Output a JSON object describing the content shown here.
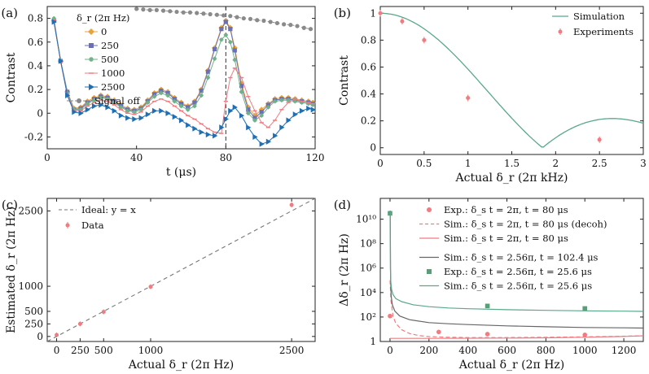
{
  "chart_data": [
    {
      "panel": "(a)",
      "type": "line",
      "xlabel": "t (μs)",
      "ylabel": "Contrast",
      "xlim": [
        0,
        120
      ],
      "ylim": [
        -0.3,
        0.9
      ],
      "xticks": [
        0,
        40,
        80,
        120
      ],
      "yticks": [
        -0.2,
        0,
        0.2,
        0.4,
        0.6,
        0.8
      ],
      "vline": 80,
      "legend_title": "δ_r (2π Hz)",
      "series": [
        {
          "name": "0",
          "color": "#e8a33d",
          "marker": "diamond",
          "x": [
            3,
            6,
            9,
            12,
            15,
            18,
            21,
            24,
            27,
            30,
            33,
            36,
            39,
            42,
            45,
            48,
            51,
            54,
            57,
            60,
            63,
            66,
            69,
            72,
            75,
            78,
            80,
            82,
            84,
            87,
            90,
            93,
            96,
            99,
            102,
            105,
            108,
            111,
            114,
            117,
            119
          ],
          "y": [
            0.78,
            0.44,
            0.18,
            0.04,
            0.05,
            0.1,
            0.13,
            0.15,
            0.14,
            0.11,
            0.07,
            0.04,
            0.03,
            0.05,
            0.11,
            0.17,
            0.2,
            0.18,
            0.13,
            0.09,
            0.06,
            0.1,
            0.2,
            0.36,
            0.55,
            0.72,
            0.78,
            0.72,
            0.55,
            0.25,
            0.05,
            -0.02,
            0.03,
            0.08,
            0.12,
            0.13,
            0.13,
            0.12,
            0.11,
            0.1,
            0.09
          ]
        },
        {
          "name": "250",
          "color": "#6b6fb8",
          "marker": "square",
          "x": [
            3,
            6,
            9,
            12,
            15,
            18,
            21,
            24,
            27,
            30,
            33,
            36,
            39,
            42,
            45,
            48,
            51,
            54,
            57,
            60,
            63,
            66,
            69,
            72,
            75,
            78,
            80,
            82,
            84,
            87,
            90,
            93,
            96,
            99,
            102,
            105,
            108,
            111,
            114,
            117,
            119
          ],
          "y": [
            0.78,
            0.44,
            0.18,
            0.03,
            0.04,
            0.09,
            0.12,
            0.14,
            0.13,
            0.1,
            0.06,
            0.03,
            0.02,
            0.04,
            0.1,
            0.16,
            0.19,
            0.17,
            0.12,
            0.08,
            0.05,
            0.09,
            0.19,
            0.35,
            0.54,
            0.71,
            0.77,
            0.71,
            0.53,
            0.23,
            0.03,
            -0.04,
            0.01,
            0.07,
            0.11,
            0.12,
            0.12,
            0.11,
            0.1,
            0.09,
            0.08
          ]
        },
        {
          "name": "500",
          "color": "#6fb289",
          "marker": "star",
          "x": [
            3,
            6,
            9,
            12,
            15,
            18,
            21,
            24,
            27,
            30,
            33,
            36,
            39,
            42,
            45,
            48,
            51,
            54,
            57,
            60,
            63,
            66,
            69,
            72,
            75,
            78,
            80,
            82,
            84,
            87,
            90,
            93,
            96,
            99,
            102,
            105,
            108,
            111,
            114,
            117,
            119
          ],
          "y": [
            0.8,
            0.44,
            0.17,
            0.03,
            0.03,
            0.08,
            0.11,
            0.13,
            0.12,
            0.09,
            0.05,
            0.02,
            0.01,
            0.03,
            0.09,
            0.14,
            0.17,
            0.15,
            0.1,
            0.06,
            0.03,
            0.06,
            0.15,
            0.3,
            0.46,
            0.62,
            0.66,
            0.6,
            0.45,
            0.18,
            0.0,
            -0.06,
            -0.02,
            0.05,
            0.1,
            0.11,
            0.11,
            0.1,
            0.09,
            0.08,
            0.07
          ]
        },
        {
          "name": "1000",
          "color": "#f07b80",
          "marker": "dash",
          "x": [
            3,
            6,
            9,
            12,
            15,
            18,
            21,
            24,
            27,
            30,
            33,
            36,
            39,
            42,
            45,
            48,
            51,
            54,
            57,
            60,
            63,
            66,
            69,
            72,
            75,
            78,
            80,
            82,
            84,
            87,
            90,
            93,
            96,
            99,
            102,
            105,
            108,
            111,
            114,
            117,
            119
          ],
          "y": [
            0.79,
            0.43,
            0.16,
            0.02,
            0.02,
            0.06,
            0.09,
            0.11,
            0.1,
            0.07,
            0.03,
            0.0,
            -0.01,
            0.01,
            0.06,
            0.1,
            0.12,
            0.1,
            0.06,
            0.02,
            -0.02,
            -0.05,
            -0.09,
            -0.13,
            -0.16,
            -0.17,
            0.1,
            0.3,
            0.38,
            0.3,
            0.14,
            0.02,
            -0.08,
            -0.12,
            -0.06,
            0.03,
            0.09,
            0.12,
            0.1,
            0.09,
            0.08
          ]
        },
        {
          "name": "2500",
          "color": "#1f6fb5",
          "marker": "triangle",
          "x": [
            3,
            6,
            9,
            12,
            15,
            18,
            21,
            24,
            27,
            30,
            33,
            36,
            39,
            42,
            45,
            48,
            51,
            54,
            57,
            60,
            63,
            66,
            69,
            72,
            75,
            78,
            80,
            82,
            84,
            87,
            90,
            93,
            96,
            99,
            102,
            105,
            108,
            111,
            114,
            117,
            119
          ],
          "y": [
            0.77,
            0.44,
            0.15,
            0.01,
            0.0,
            0.03,
            0.06,
            0.07,
            0.05,
            0.02,
            -0.02,
            -0.04,
            -0.05,
            -0.04,
            -0.01,
            0.02,
            0.02,
            0.0,
            -0.03,
            -0.06,
            -0.1,
            -0.13,
            -0.16,
            -0.18,
            -0.19,
            -0.12,
            -0.05,
            0.02,
            0.05,
            -0.02,
            -0.12,
            -0.2,
            -0.26,
            -0.24,
            -0.19,
            -0.12,
            -0.06,
            -0.01,
            0.02,
            0.04,
            0.03
          ]
        },
        {
          "name": "Signal off",
          "color": "#8a8a8a",
          "marker": "circle",
          "x": [
            40,
            43,
            46,
            49,
            52,
            55,
            58,
            61,
            64,
            67,
            70,
            73,
            76,
            79,
            82,
            85,
            88,
            91,
            94,
            97,
            100,
            103,
            106,
            109,
            112,
            115,
            118
          ],
          "y": [
            0.88,
            0.875,
            0.87,
            0.87,
            0.865,
            0.86,
            0.855,
            0.85,
            0.85,
            0.845,
            0.84,
            0.835,
            0.83,
            0.825,
            0.82,
            0.81,
            0.8,
            0.795,
            0.785,
            0.78,
            0.77,
            0.76,
            0.75,
            0.745,
            0.735,
            0.72,
            0.71
          ]
        }
      ]
    },
    {
      "panel": "(b)",
      "type": "line",
      "xlabel": "Actual δ_r (2π kHz)",
      "ylabel": "Contrast",
      "xlim": [
        0,
        3
      ],
      "ylim": [
        -0.05,
        1.05
      ],
      "xticks": [
        0,
        0.5,
        1,
        1.5,
        2,
        2.5,
        3
      ],
      "yticks": [
        0,
        0.2,
        0.4,
        0.6,
        0.8,
        1
      ],
      "legend": [
        "Simulation",
        "Experiments"
      ],
      "series": [
        {
          "name": "Simulation",
          "color": "#5aa88a",
          "model": "|sinc(δ_r / 1.85 kHz)|"
        },
        {
          "name": "Experiments",
          "color": "#f07b80",
          "x": [
            0,
            0.25,
            0.5,
            1,
            2.5
          ],
          "y": [
            1.0,
            0.94,
            0.8,
            0.37,
            0.06
          ]
        }
      ]
    },
    {
      "panel": "(c)",
      "type": "scatter",
      "xlabel": "Actual δ_r (2π Hz)",
      "ylabel": "Estimated δ_r (2π Hz)",
      "xlim": [
        -100,
        2750
      ],
      "ylim": [
        -100,
        2750
      ],
      "xticks": [
        0,
        250,
        500,
        1000,
        2500
      ],
      "yticks": [
        0,
        250,
        500,
        1000,
        2500
      ],
      "legend": [
        "Ideal: y = x",
        "Data"
      ],
      "series": [
        {
          "name": "Ideal: y = x",
          "color": "#777777",
          "style": "dashed",
          "x": [
            -100,
            2750
          ],
          "y": [
            -100,
            2750
          ]
        },
        {
          "name": "Data",
          "color": "#f07b80",
          "x": [
            0,
            250,
            500,
            1000,
            2500
          ],
          "y": [
            30,
            250,
            490,
            990,
            2620
          ]
        }
      ]
    },
    {
      "panel": "(d)",
      "type": "line",
      "xlabel": "Actual δ_r (2π Hz)",
      "ylabel": "Δδ_r (2π Hz)",
      "yscale": "log",
      "xlim": [
        -50,
        1300
      ],
      "ylim": [
        1,
        500000000000
      ],
      "xticks": [
        0,
        200,
        400,
        600,
        800,
        1000,
        1200
      ],
      "ytick_labels": [
        "1",
        "10²",
        "10⁴",
        "10⁶",
        "10⁸",
        "10¹⁰"
      ],
      "series": [
        {
          "name": "Exp.: δ_s t = 2π, t = 80 μs",
          "color": "#f07b80",
          "marker": "circle",
          "x": [
            0,
            250,
            500,
            1000
          ],
          "y": [
            120,
            6,
            4,
            3.5
          ]
        },
        {
          "name": "Sim.: δ_s t = 2π, t = 80 μs (decoh)",
          "color": "#f07b80",
          "style": "dashed",
          "x": [
            0,
            5,
            15,
            30,
            60,
            100,
            150,
            200,
            300,
            400,
            600,
            800,
            1000,
            1200,
            1300
          ],
          "y": [
            100000,
            2000,
            120,
            30,
            9,
            4.5,
            3,
            2.5,
            2.2,
            2.1,
            2.1,
            2.2,
            2.4,
            2.7,
            2.9
          ]
        },
        {
          "name": "Sim.: δ_s t = 2π, t = 80 μs",
          "color": "#f07b80",
          "style": "solid",
          "x": [
            0,
            200,
            400,
            600,
            800,
            1000,
            1200,
            1300
          ],
          "y": [
            1.8,
            1.8,
            1.85,
            1.9,
            2.0,
            2.2,
            2.6,
            2.9
          ]
        },
        {
          "name": "Sim.: δ_s t = 2.56π, t = 102.4 μs",
          "color": "#666666",
          "style": "solid",
          "x": [
            1,
            3,
            6,
            12,
            25,
            50,
            100,
            200,
            300,
            400,
            600,
            800,
            1000,
            1200,
            1300
          ],
          "y": [
            50000000000,
            100000,
            5000,
            1000,
            300,
            120,
            60,
            35,
            28,
            24,
            19,
            16,
            14,
            13,
            12.5
          ]
        },
        {
          "name": "Exp.: δ_s t = 2.56π, t = 25.6 μs",
          "color": "#5a9e78",
          "marker": "square",
          "x": [
            0,
            500,
            1000
          ],
          "y": [
            30000000000,
            800,
            500
          ]
        },
        {
          "name": "Sim.: δ_s t = 2.56π, t = 25.6 μs",
          "color": "#5aa88a",
          "style": "solid",
          "x": [
            1,
            2,
            4,
            8,
            15,
            30,
            60,
            120,
            200,
            300,
            400,
            600,
            800,
            1000,
            1200,
            1300
          ],
          "y": [
            50000000000,
            1000000,
            80000,
            18000,
            7000,
            3200,
            1800,
            1000,
            700,
            550,
            480,
            400,
            350,
            320,
            300,
            290
          ]
        }
      ]
    }
  ]
}
